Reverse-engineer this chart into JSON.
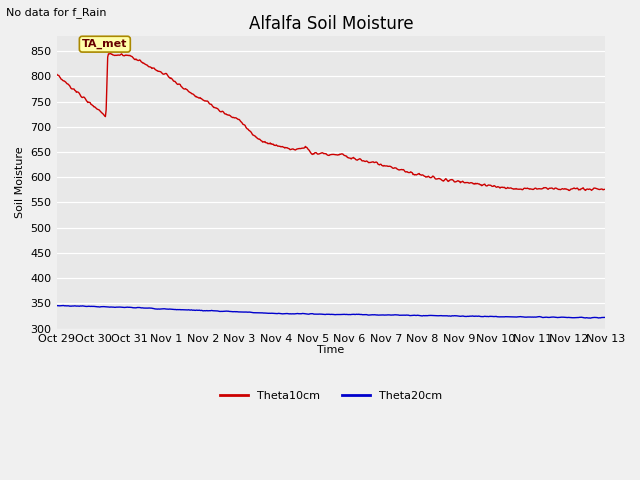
{
  "title": "Alfalfa Soil Moisture",
  "subtitle": "No data for f_Rain",
  "ylabel": "Soil Moisture",
  "xlabel": "Time",
  "annotation": "TA_met",
  "ylim": [
    300,
    880
  ],
  "yticks": [
    300,
    350,
    400,
    450,
    500,
    550,
    600,
    650,
    700,
    750,
    800,
    850
  ],
  "xtick_labels": [
    "Oct 29",
    "Oct 30",
    "Oct 31",
    "Nov 1",
    "Nov 2",
    "Nov 3",
    "Nov 4",
    "Nov 5",
    "Nov 6",
    "Nov 7",
    "Nov 8",
    "Nov 9",
    "Nov 10",
    "Nov 11",
    "Nov 12",
    "Nov 13"
  ],
  "fig_bg_color": "#f0f0f0",
  "plot_bg_color": "#e8e8e8",
  "grid_color": "#ffffff",
  "theta10_color": "#cc0000",
  "theta20_color": "#0000cc",
  "legend_labels": [
    "Theta10cm",
    "Theta20cm"
  ],
  "title_fontsize": 12,
  "label_fontsize": 8,
  "tick_fontsize": 8,
  "subtitle_fontsize": 8
}
